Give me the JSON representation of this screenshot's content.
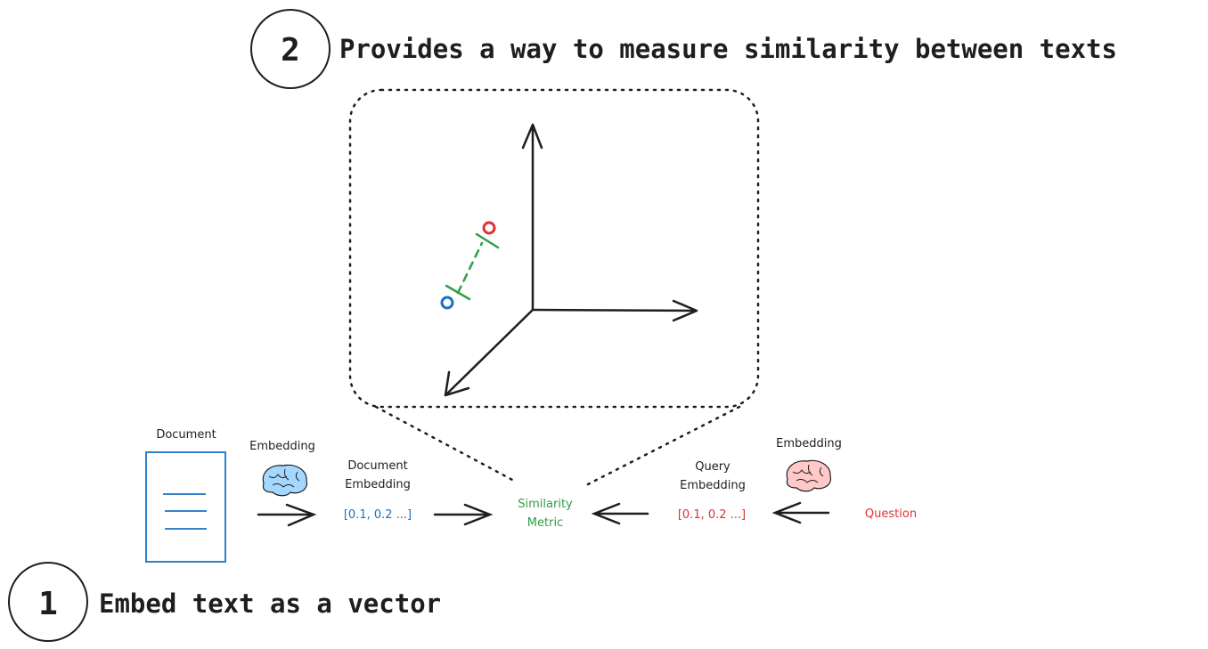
{
  "steps": [
    {
      "number": "1",
      "text": "Embed text as a vector"
    },
    {
      "number": "2",
      "text": "Provides a way to measure similarity between texts"
    }
  ],
  "left": {
    "document_label": "Document",
    "embedding_label": "Embedding",
    "doc_embedding_label_1": "Document",
    "doc_embedding_label_2": "Embedding",
    "vector": "[0.1, 0.2 ...]"
  },
  "center": {
    "metric_label_1": "Similarity",
    "metric_label_2": "Metric"
  },
  "right": {
    "embedding_label": "Embedding",
    "query_embedding_label_1": "Query",
    "query_embedding_label_2": "Embedding",
    "vector": "[0.1, 0.2 ...]",
    "question_label": "Question"
  },
  "colors": {
    "document": "#1971c2",
    "query": "#e03131",
    "metric": "#2f9e44",
    "brain_blue": "#a5d8ff",
    "brain_pink": "#ffc9c9",
    "ink": "#1e1e1e"
  }
}
